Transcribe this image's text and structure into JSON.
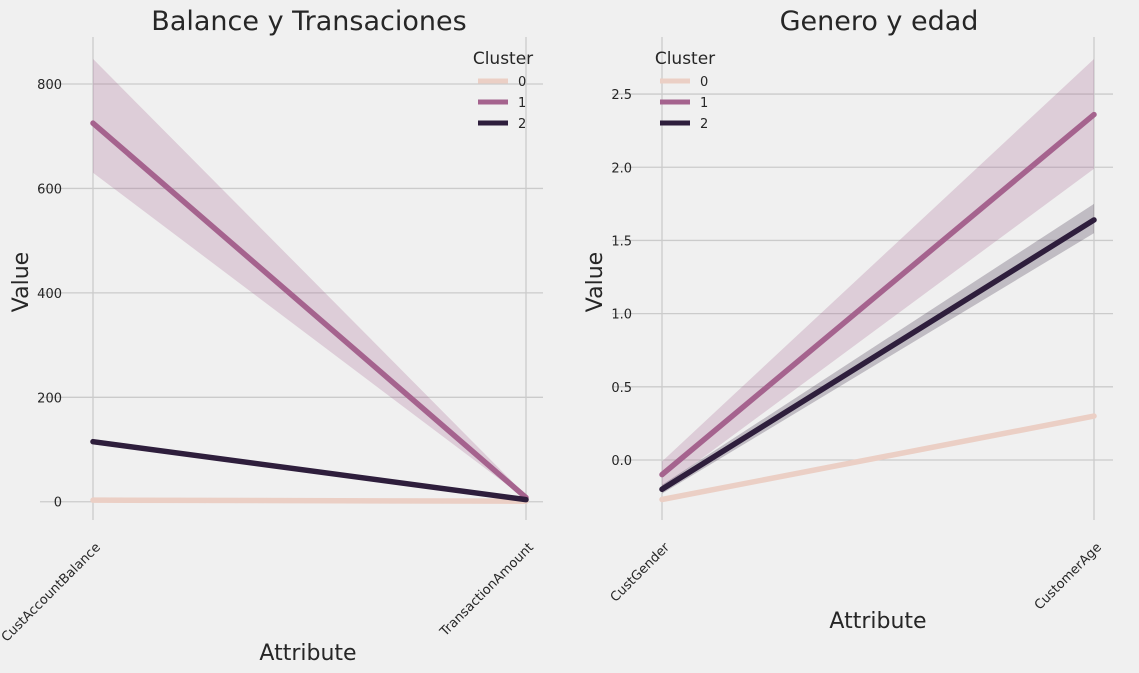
{
  "chart_data": [
    {
      "type": "line",
      "title": "Balance y Transaciones",
      "xlabel": "Attribute",
      "ylabel": "Value",
      "categories": [
        "CustAccountBalance",
        "TransactionAmount"
      ],
      "ylim": [
        -35,
        890
      ],
      "yticks": [
        0,
        200,
        400,
        600,
        800
      ],
      "yticklabels": [
        "0",
        "200",
        "400",
        "600",
        "800"
      ],
      "legend": {
        "title": "Cluster",
        "placement": "top-right"
      },
      "series": [
        {
          "name": "0",
          "color": "#ebcfc5",
          "values": [
            3,
            1
          ],
          "ci_low": [
            2,
            0
          ],
          "ci_high": [
            4,
            2
          ]
        },
        {
          "name": "1",
          "color": "#a5638e",
          "values": [
            725,
            8
          ],
          "ci_low": [
            630,
            5
          ],
          "ci_high": [
            848,
            12
          ]
        },
        {
          "name": "2",
          "color": "#2e1e3c",
          "values": [
            115,
            4
          ],
          "ci_low": [
            110,
            3
          ],
          "ci_high": [
            120,
            5
          ]
        }
      ]
    },
    {
      "type": "line",
      "title": "Genero y edad",
      "xlabel": "Attribute",
      "ylabel": "Value",
      "categories": [
        "CustGender",
        "CustomerAge"
      ],
      "ylim": [
        -0.41,
        2.89
      ],
      "yticks": [
        0.0,
        0.5,
        1.0,
        1.5,
        2.0,
        2.5
      ],
      "yticklabels": [
        "0.0",
        "0.5",
        "1.0",
        "1.5",
        "2.0",
        "2.5"
      ],
      "legend": {
        "title": "Cluster",
        "placement": "top-left"
      },
      "series": [
        {
          "name": "0",
          "color": "#ebcfc5",
          "values": [
            -0.27,
            0.3
          ],
          "ci_low": [
            -0.28,
            0.29
          ],
          "ci_high": [
            -0.26,
            0.31
          ]
        },
        {
          "name": "1",
          "color": "#a5638e",
          "values": [
            -0.1,
            2.36
          ],
          "ci_low": [
            -0.19,
            1.99
          ],
          "ci_high": [
            -0.01,
            2.74
          ]
        },
        {
          "name": "2",
          "color": "#2e1e3c",
          "values": [
            -0.2,
            1.64
          ],
          "ci_low": [
            -0.23,
            1.55
          ],
          "ci_high": [
            -0.17,
            1.75
          ]
        }
      ]
    }
  ]
}
